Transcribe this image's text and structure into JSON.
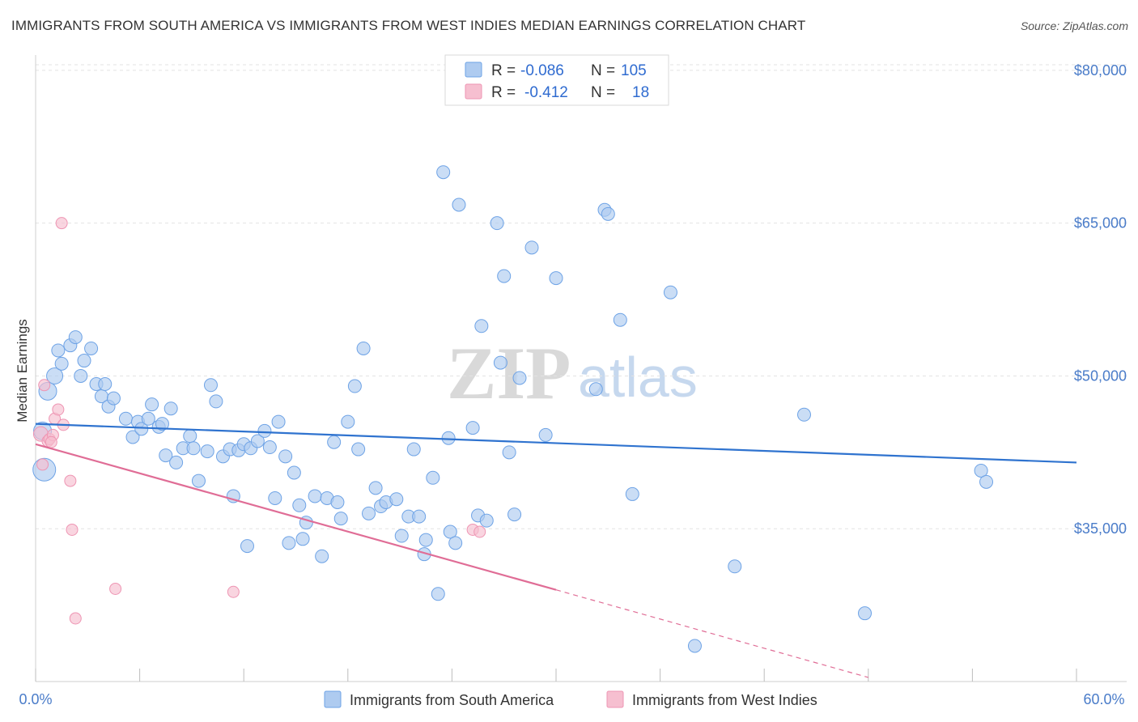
{
  "header": {
    "title": "IMMIGRANTS FROM SOUTH AMERICA VS IMMIGRANTS FROM WEST INDIES MEDIAN EARNINGS CORRELATION CHART",
    "source": "Source: ZipAtlas.com"
  },
  "watermark": {
    "zip": "ZIP",
    "atlas": "atlas"
  },
  "legend": {
    "r_label": "R =",
    "n_label": "N =",
    "rows": [
      {
        "r": "-0.086",
        "n": "105",
        "color": "#aecbf0"
      },
      {
        "r": "-0.412",
        "n": "18",
        "color": "#f6bfd0"
      }
    ]
  },
  "chart_data": {
    "type": "scatter",
    "title": "IMMIGRANTS FROM SOUTH AMERICA VS IMMIGRANTS FROM WEST INDIES MEDIAN EARNINGS CORRELATION CHART",
    "xlabel": "",
    "ylabel": "Median Earnings",
    "xlim": [
      0,
      60
    ],
    "ylim": [
      20000,
      81500
    ],
    "x_tick_labels": [
      "0.0%",
      "60.0%"
    ],
    "y_ticks": [
      35000,
      50000,
      65000,
      80000
    ],
    "y_tick_labels": [
      "$35,000",
      "$50,000",
      "$65,000",
      "$80,000"
    ],
    "grid": true,
    "series": [
      {
        "name": "Immigrants from South America",
        "color": "#6ea3e6",
        "fill": "#aecbf0",
        "trend": {
          "x0": 0,
          "y0": 45300,
          "x1": 60,
          "y1": 41500,
          "color": "#2f73cf"
        },
        "points": [
          [
            0.5,
            40800,
            28
          ],
          [
            0.7,
            48500,
            22
          ],
          [
            0.4,
            44600,
            22
          ],
          [
            1.1,
            50000,
            20
          ],
          [
            1.3,
            52500,
            16
          ],
          [
            1.5,
            51200,
            16
          ],
          [
            2.0,
            53000,
            16
          ],
          [
            2.3,
            53800,
            16
          ],
          [
            2.6,
            50000,
            16
          ],
          [
            2.8,
            51500,
            16
          ],
          [
            3.2,
            52700,
            16
          ],
          [
            3.5,
            49200,
            16
          ],
          [
            3.8,
            48000,
            16
          ],
          [
            4.0,
            49200,
            16
          ],
          [
            4.2,
            47000,
            16
          ],
          [
            4.5,
            47800,
            16
          ],
          [
            5.2,
            45800,
            16
          ],
          [
            5.6,
            44000,
            16
          ],
          [
            5.9,
            45500,
            16
          ],
          [
            6.1,
            44800,
            16
          ],
          [
            6.5,
            45800,
            16
          ],
          [
            6.7,
            47200,
            16
          ],
          [
            7.1,
            45000,
            16
          ],
          [
            7.3,
            45300,
            16
          ],
          [
            7.8,
            46800,
            16
          ],
          [
            7.5,
            42200,
            16
          ],
          [
            8.1,
            41500,
            16
          ],
          [
            8.5,
            42900,
            16
          ],
          [
            8.9,
            44100,
            16
          ],
          [
            9.1,
            42900,
            16
          ],
          [
            9.4,
            39700,
            16
          ],
          [
            9.9,
            42600,
            16
          ],
          [
            10.1,
            49100,
            16
          ],
          [
            10.4,
            47500,
            16
          ],
          [
            10.8,
            42100,
            16
          ],
          [
            11.2,
            42800,
            16
          ],
          [
            11.4,
            38200,
            16
          ],
          [
            11.7,
            42700,
            16
          ],
          [
            12.0,
            43300,
            16
          ],
          [
            12.4,
            42900,
            16
          ],
          [
            12.2,
            33300,
            16
          ],
          [
            12.8,
            43600,
            16
          ],
          [
            13.2,
            44600,
            16
          ],
          [
            13.5,
            43000,
            16
          ],
          [
            14.0,
            45500,
            16
          ],
          [
            14.4,
            42100,
            16
          ],
          [
            14.9,
            40500,
            16
          ],
          [
            13.8,
            38000,
            16
          ],
          [
            14.6,
            33600,
            16
          ],
          [
            15.2,
            37300,
            16
          ],
          [
            15.6,
            35600,
            16
          ],
          [
            15.4,
            34000,
            16
          ],
          [
            16.1,
            38200,
            16
          ],
          [
            16.5,
            32300,
            16
          ],
          [
            16.8,
            38000,
            16
          ],
          [
            17.2,
            43500,
            16
          ],
          [
            17.6,
            36000,
            16
          ],
          [
            17.4,
            37600,
            16
          ],
          [
            18.0,
            45500,
            16
          ],
          [
            18.4,
            49000,
            16
          ],
          [
            18.6,
            42800,
            16
          ],
          [
            18.9,
            52700,
            16
          ],
          [
            19.2,
            36500,
            16
          ],
          [
            19.6,
            39000,
            16
          ],
          [
            19.9,
            37200,
            16
          ],
          [
            20.2,
            37600,
            16
          ],
          [
            20.8,
            37900,
            16
          ],
          [
            21.1,
            34300,
            16
          ],
          [
            21.5,
            36200,
            16
          ],
          [
            21.8,
            42800,
            16
          ],
          [
            22.1,
            36200,
            16
          ],
          [
            22.5,
            33900,
            16
          ],
          [
            22.4,
            32500,
            16
          ],
          [
            22.9,
            40000,
            16
          ],
          [
            23.2,
            28600,
            16
          ],
          [
            23.8,
            43900,
            16
          ],
          [
            23.9,
            34700,
            16
          ],
          [
            24.2,
            33600,
            16
          ],
          [
            23.5,
            70000,
            16
          ],
          [
            24.4,
            66800,
            16
          ],
          [
            25.2,
            44900,
            16
          ],
          [
            25.5,
            36300,
            16
          ],
          [
            25.7,
            54900,
            16
          ],
          [
            26.0,
            35800,
            16
          ],
          [
            26.8,
            51300,
            16
          ],
          [
            26.6,
            65000,
            16
          ],
          [
            27.3,
            42500,
            16
          ],
          [
            27.0,
            59800,
            16
          ],
          [
            27.6,
            36400,
            16
          ],
          [
            27.9,
            49800,
            16
          ],
          [
            28.6,
            62600,
            16
          ],
          [
            29.4,
            44200,
            16
          ],
          [
            30.0,
            59600,
            16
          ],
          [
            32.3,
            48700,
            16
          ],
          [
            32.8,
            66300,
            16
          ],
          [
            33.0,
            65900,
            16
          ],
          [
            33.7,
            55500,
            16
          ],
          [
            34.4,
            38400,
            16
          ],
          [
            36.6,
            58200,
            16
          ],
          [
            38.0,
            23500,
            16
          ],
          [
            40.3,
            31300,
            16
          ],
          [
            44.3,
            46200,
            16
          ],
          [
            47.8,
            26700,
            16
          ],
          [
            54.5,
            40700,
            16
          ],
          [
            54.8,
            39600,
            16
          ]
        ]
      },
      {
        "name": "Immigrants from West Indies",
        "color": "#ee95b3",
        "fill": "#f6bfd0",
        "trend": {
          "x0": 0,
          "y0": 43300,
          "x1": 30,
          "y1": 29000,
          "dash_to_x": 48,
          "dash_to_y": 20400,
          "color": "#e06d96"
        },
        "points": [
          [
            0.3,
            44300,
            18
          ],
          [
            0.4,
            41300,
            14
          ],
          [
            0.5,
            49100,
            14
          ],
          [
            0.7,
            43600,
            14
          ],
          [
            0.8,
            43800,
            14
          ],
          [
            1.0,
            44200,
            14
          ],
          [
            1.1,
            45800,
            14
          ],
          [
            1.3,
            46700,
            14
          ],
          [
            1.6,
            45200,
            14
          ],
          [
            1.5,
            65000,
            14
          ],
          [
            2.0,
            39700,
            14
          ],
          [
            2.1,
            34900,
            14
          ],
          [
            2.3,
            26200,
            14
          ],
          [
            4.6,
            29100,
            14
          ],
          [
            11.4,
            28800,
            14
          ],
          [
            25.2,
            34900,
            14
          ],
          [
            25.6,
            34700,
            14
          ],
          [
            0.9,
            43500,
            14
          ]
        ]
      }
    ]
  },
  "bottom_legend": [
    {
      "label": "Immigrants from South America",
      "color": "#aecbf0",
      "border": "#6ea3e6"
    },
    {
      "label": "Immigrants from West Indies",
      "color": "#f6bfd0",
      "border": "#ee95b3"
    }
  ]
}
